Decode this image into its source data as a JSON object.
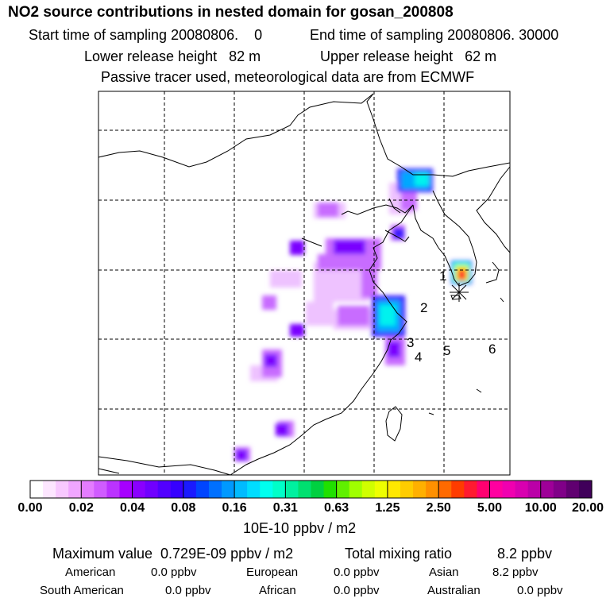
{
  "header": {
    "title": "NO2 source contributions in nested domain for gosan_200808",
    "start_label": "Start time of sampling 20080806.    0",
    "end_label": "End time of sampling 20080806. 30000",
    "lower_label": "Lower release height   82 m",
    "upper_label": "Upper release height   62 m",
    "tracer_label": "Passive tracer used, meteorological data are from ECMWF"
  },
  "chart_data": {
    "type": "heatmap",
    "title": "NO2 source contributions in nested domain for gosan_200808",
    "colorbar": {
      "ticks": [
        "0.00",
        "0.02",
        "0.04",
        "0.08",
        "0.16",
        "0.31",
        "0.63",
        "1.25",
        "2.50",
        "5.00",
        "10.00",
        "20.00"
      ],
      "unit": "10E-10 ppbv / m2",
      "colors": [
        "#ffffff",
        "#fde6ff",
        "#f8c8ff",
        "#f0a6ff",
        "#e47cff",
        "#d05cff",
        "#bb33ff",
        "#a600ff",
        "#8a00ff",
        "#7000ff",
        "#5200ff",
        "#3600ff",
        "#1a1aff",
        "#0045ff",
        "#0070ff",
        "#0099ff",
        "#00bbff",
        "#00ddff",
        "#00ffee",
        "#00ffc8",
        "#00f0a0",
        "#00e070",
        "#00d040",
        "#20e000",
        "#60f000",
        "#a0ff00",
        "#d0ff00",
        "#eeff00",
        "#ffe800",
        "#ffcc00",
        "#ffb000",
        "#ff9000",
        "#ff6a00",
        "#ff3c00",
        "#ff1a30",
        "#ff0070",
        "#ff00a0",
        "#f000b0",
        "#d800b0",
        "#bb00a8",
        "#9e0098",
        "#800088",
        "#600070",
        "#40005a"
      ]
    },
    "markers": [
      "1",
      "2",
      "3",
      "4",
      "5",
      "6"
    ],
    "receptor": "gosan",
    "max_value": "0.729E-09",
    "total_mixing_ratio_ppbv": 8.2
  },
  "footer": {
    "max_label": "Maximum value  0.729E-09 ppbv / m2",
    "total_label": "Total mixing ratio",
    "total_value": "8.2 ppbv",
    "american_label": "American",
    "american_value": "0.0 ppbv",
    "european_label": "European",
    "european_value": "0.0 ppbv",
    "asian_label": "Asian",
    "asian_value": "8.2 ppbv",
    "southam_label": "South American",
    "southam_value": "0.0 ppbv",
    "african_label": "African",
    "african_value": "0.0 ppbv",
    "australian_label": "Australian",
    "australian_value": "0.0 ppbv"
  }
}
